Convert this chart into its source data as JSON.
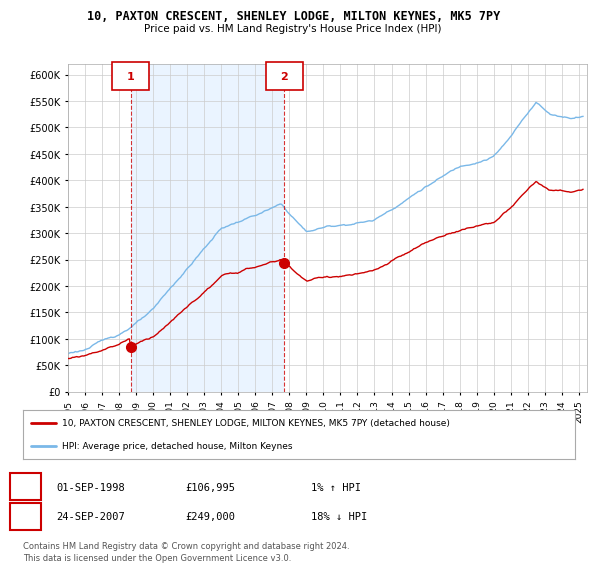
{
  "title1": "10, PAXTON CRESCENT, SHENLEY LODGE, MILTON KEYNES, MK5 7PY",
  "title2": "Price paid vs. HM Land Registry's House Price Index (HPI)",
  "sale1_date": "01-SEP-1998",
  "sale1_price": 106995,
  "sale1_label": "1% ↑ HPI",
  "sale2_date": "24-SEP-2007",
  "sale2_price": 249000,
  "sale2_label": "18% ↓ HPI",
  "legend1": "10, PAXTON CRESCENT, SHENLEY LODGE, MILTON KEYNES, MK5 7PY (detached house)",
  "legend2": "HPI: Average price, detached house, Milton Keynes",
  "footer": "Contains HM Land Registry data © Crown copyright and database right 2024.\nThis data is licensed under the Open Government Licence v3.0.",
  "hpi_color": "#7ab8e8",
  "price_color": "#cc0000",
  "shade_color": "#ddeeff",
  "ylim_min": 0,
  "ylim_max": 620000,
  "background_color": "#ffffff",
  "plot_bg_color": "#ffffff",
  "grid_color": "#cccccc",
  "sale1_t": 1998.667,
  "sale2_t": 2007.708
}
